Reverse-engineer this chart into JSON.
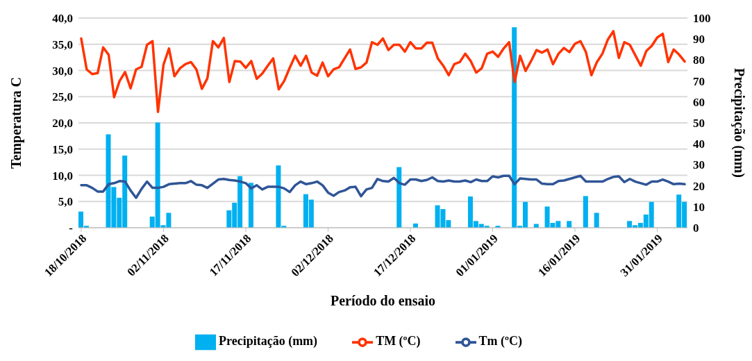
{
  "chart_data": {
    "type": "line",
    "xlabel": "Período do  ensaio",
    "ylabel": "Temperatura C",
    "y2label": "Precipitação (mm)",
    "x": [
      "2018-10-18",
      "2018-10-19",
      "2018-10-20",
      "2018-10-21",
      "2018-10-22",
      "2018-10-23",
      "2018-10-24",
      "2018-10-25",
      "2018-10-26",
      "2018-10-27",
      "2018-10-28",
      "2018-10-29",
      "2018-10-30",
      "2018-10-31",
      "2018-11-01",
      "2018-11-02",
      "2018-11-03",
      "2018-11-04",
      "2018-11-05",
      "2018-11-06",
      "2018-11-07",
      "2018-11-08",
      "2018-11-09",
      "2018-11-10",
      "2018-11-11",
      "2018-11-12",
      "2018-11-13",
      "2018-11-14",
      "2018-11-15",
      "2018-11-16",
      "2018-11-17",
      "2018-11-18",
      "2018-11-19",
      "2018-11-20",
      "2018-11-21",
      "2018-11-22",
      "2018-11-23",
      "2018-11-24",
      "2018-11-25",
      "2018-11-26",
      "2018-11-27",
      "2018-11-28",
      "2018-11-29",
      "2018-11-30",
      "2018-12-01",
      "2018-12-02",
      "2018-12-03",
      "2018-12-04",
      "2018-12-05",
      "2018-12-06",
      "2018-12-07",
      "2018-12-08",
      "2018-12-09",
      "2018-12-10",
      "2018-12-11",
      "2018-12-12",
      "2018-12-13",
      "2018-12-14",
      "2018-12-15",
      "2018-12-16",
      "2018-12-17",
      "2018-12-18",
      "2018-12-19",
      "2018-12-20",
      "2018-12-21",
      "2018-12-22",
      "2018-12-23",
      "2018-12-24",
      "2018-12-25",
      "2018-12-26",
      "2018-12-27",
      "2018-12-28",
      "2018-12-29",
      "2018-12-30",
      "2018-12-31",
      "2019-01-01",
      "2019-01-02",
      "2019-01-03",
      "2019-01-04",
      "2019-01-05",
      "2019-01-06",
      "2019-01-07",
      "2019-01-08",
      "2019-01-09",
      "2019-01-10",
      "2019-01-11",
      "2019-01-12",
      "2019-01-13",
      "2019-01-14",
      "2019-01-15",
      "2019-01-16",
      "2019-01-17",
      "2019-01-18",
      "2019-01-19",
      "2019-01-20",
      "2019-01-21",
      "2019-01-22",
      "2019-01-23",
      "2019-01-24",
      "2019-01-25",
      "2019-01-26",
      "2019-01-27",
      "2019-01-28",
      "2019-01-29",
      "2019-01-30",
      "2019-01-31",
      "2019-02-01",
      "2019-02-02",
      "2019-02-03",
      "2019-02-04",
      "2019-02-05"
    ],
    "series": [
      {
        "name": "Precipitação (mm)",
        "type": "bar",
        "axis": "y2",
        "color": "#00b0f0",
        "values": [
          7.7,
          0.9,
          null,
          null,
          null,
          44.5,
          19.4,
          14.3,
          34.4,
          null,
          null,
          null,
          null,
          5.3,
          50.2,
          1.2,
          7.1,
          null,
          null,
          null,
          null,
          null,
          null,
          null,
          null,
          null,
          null,
          8.3,
          11.9,
          24.6,
          null,
          21.4,
          null,
          null,
          null,
          null,
          29.7,
          0.9,
          null,
          null,
          null,
          16.0,
          13.4,
          null,
          null,
          null,
          null,
          null,
          null,
          null,
          null,
          null,
          null,
          null,
          null,
          null,
          null,
          null,
          28.9,
          null,
          null,
          2.0,
          null,
          null,
          null,
          10.7,
          8.9,
          3.6,
          null,
          null,
          null,
          14.9,
          3.2,
          1.8,
          0.9,
          null,
          0.9,
          null,
          null,
          95.6,
          0.9,
          12.3,
          null,
          1.8,
          null,
          10.1,
          2.3,
          3.2,
          null,
          3.2,
          null,
          null,
          15.1,
          null,
          7.1,
          null,
          null,
          null,
          null,
          null,
          3.2,
          1.2,
          2.3,
          6.3,
          12.3,
          null,
          null,
          null,
          null,
          15.8,
          12.3
        ]
      },
      {
        "name": "TM (ºC)",
        "color": "#ff3300",
        "values": [
          36.1,
          30.2,
          29.3,
          29.5,
          34.4,
          33.0,
          24.9,
          28.0,
          29.7,
          26.6,
          30.2,
          30.7,
          34.9,
          35.6,
          22.1,
          31.1,
          34.2,
          28.9,
          30.4,
          31.2,
          31.6,
          30.2,
          26.5,
          28.5,
          35.6,
          34.4,
          36.2,
          27.8,
          31.8,
          31.7,
          30.5,
          31.8,
          28.4,
          29.4,
          30.9,
          32.3,
          26.4,
          28.0,
          30.5,
          32.8,
          30.9,
          32.8,
          29.6,
          29.0,
          31.5,
          28.9,
          30.2,
          30.6,
          32.3,
          34.0,
          30.3,
          30.6,
          31.5,
          35.4,
          34.9,
          36.1,
          33.9,
          34.9,
          34.9,
          33.6,
          35.4,
          34.2,
          34.2,
          35.3,
          35.3,
          32.3,
          30.9,
          29.1,
          31.2,
          31.6,
          33.2,
          31.8,
          29.6,
          30.4,
          33.2,
          33.6,
          32.6,
          34.2,
          35.4,
          27.8,
          32.8,
          29.9,
          31.8,
          33.9,
          33.4,
          34.0,
          31.2,
          33.2,
          34.3,
          33.5,
          35.1,
          35.6,
          33.5,
          29.1,
          31.6,
          33.2,
          35.9,
          37.5,
          32.4,
          35.4,
          34.9,
          32.9,
          30.9,
          33.7,
          34.7,
          36.3,
          37.0,
          31.6,
          34.0,
          33.0,
          31.7
        ]
      },
      {
        "name": "Tm (ºC)",
        "color": "#2f5597",
        "values": [
          8.1,
          8.1,
          7.6,
          6.9,
          6.9,
          8.3,
          8.5,
          8.9,
          8.8,
          7.1,
          5.7,
          7.4,
          8.8,
          7.6,
          7.6,
          7.8,
          8.3,
          8.4,
          8.5,
          8.5,
          8.9,
          8.2,
          8.1,
          7.6,
          8.4,
          9.2,
          9.3,
          9.1,
          9.0,
          8.8,
          8.5,
          7.5,
          8.1,
          7.3,
          7.8,
          7.8,
          7.8,
          7.5,
          6.8,
          8.1,
          8.8,
          8.3,
          8.5,
          8.8,
          8.1,
          6.7,
          6.1,
          6.8,
          7.1,
          7.7,
          7.8,
          6.0,
          7.3,
          7.6,
          9.3,
          8.9,
          8.8,
          9.5,
          8.5,
          8.2,
          9.2,
          9.2,
          8.9,
          9.1,
          9.6,
          8.9,
          8.8,
          9.0,
          8.8,
          8.8,
          9.0,
          8.7,
          9.2,
          8.9,
          8.9,
          9.8,
          9.6,
          9.9,
          9.9,
          8.3,
          9.4,
          9.3,
          9.2,
          9.2,
          8.4,
          8.3,
          8.3,
          8.9,
          9.0,
          9.3,
          9.6,
          9.9,
          8.8,
          8.8,
          8.8,
          8.8,
          9.3,
          9.7,
          9.8,
          8.7,
          9.3,
          8.8,
          8.5,
          8.2,
          8.8,
          8.8,
          9.2,
          8.8,
          8.3,
          8.4,
          8.3
        ]
      }
    ],
    "xlim": [
      "2018-10-17T12:00",
      "2019-02-05T12:00"
    ],
    "xticks": [
      {
        "value": "2018-10-18",
        "label": "18/10/2018"
      },
      {
        "value": "2018-11-02",
        "label": "02/11/2018"
      },
      {
        "value": "2018-11-17",
        "label": "17/11/2018"
      },
      {
        "value": "2018-12-02",
        "label": "02/12/2018"
      },
      {
        "value": "2018-12-17",
        "label": "17/12/2018"
      },
      {
        "value": "2019-01-01",
        "label": "01/01/2019"
      },
      {
        "value": "2019-01-16",
        "label": "16/01/2019"
      },
      {
        "value": "2019-01-31",
        "label": "31/01/2019"
      }
    ],
    "ylim": [
      0,
      40
    ],
    "yticks": [
      {
        "value": 0,
        "label": "-"
      },
      {
        "value": 5,
        "label": "5,0"
      },
      {
        "value": 10,
        "label": "10,0"
      },
      {
        "value": 15,
        "label": "15,0"
      },
      {
        "value": 20,
        "label": "20,0"
      },
      {
        "value": 25,
        "label": "25,0"
      },
      {
        "value": 30,
        "label": "30,0"
      },
      {
        "value": 35,
        "label": "35,0"
      },
      {
        "value": 40,
        "label": "40,0"
      }
    ],
    "y2lim": [
      0,
      100
    ],
    "y2ticks": [
      0,
      10,
      20,
      30,
      40,
      50,
      60,
      70,
      80,
      90,
      100
    ],
    "grid": "y",
    "legend": "bottom",
    "marker": "none",
    "line_style": "solid"
  }
}
